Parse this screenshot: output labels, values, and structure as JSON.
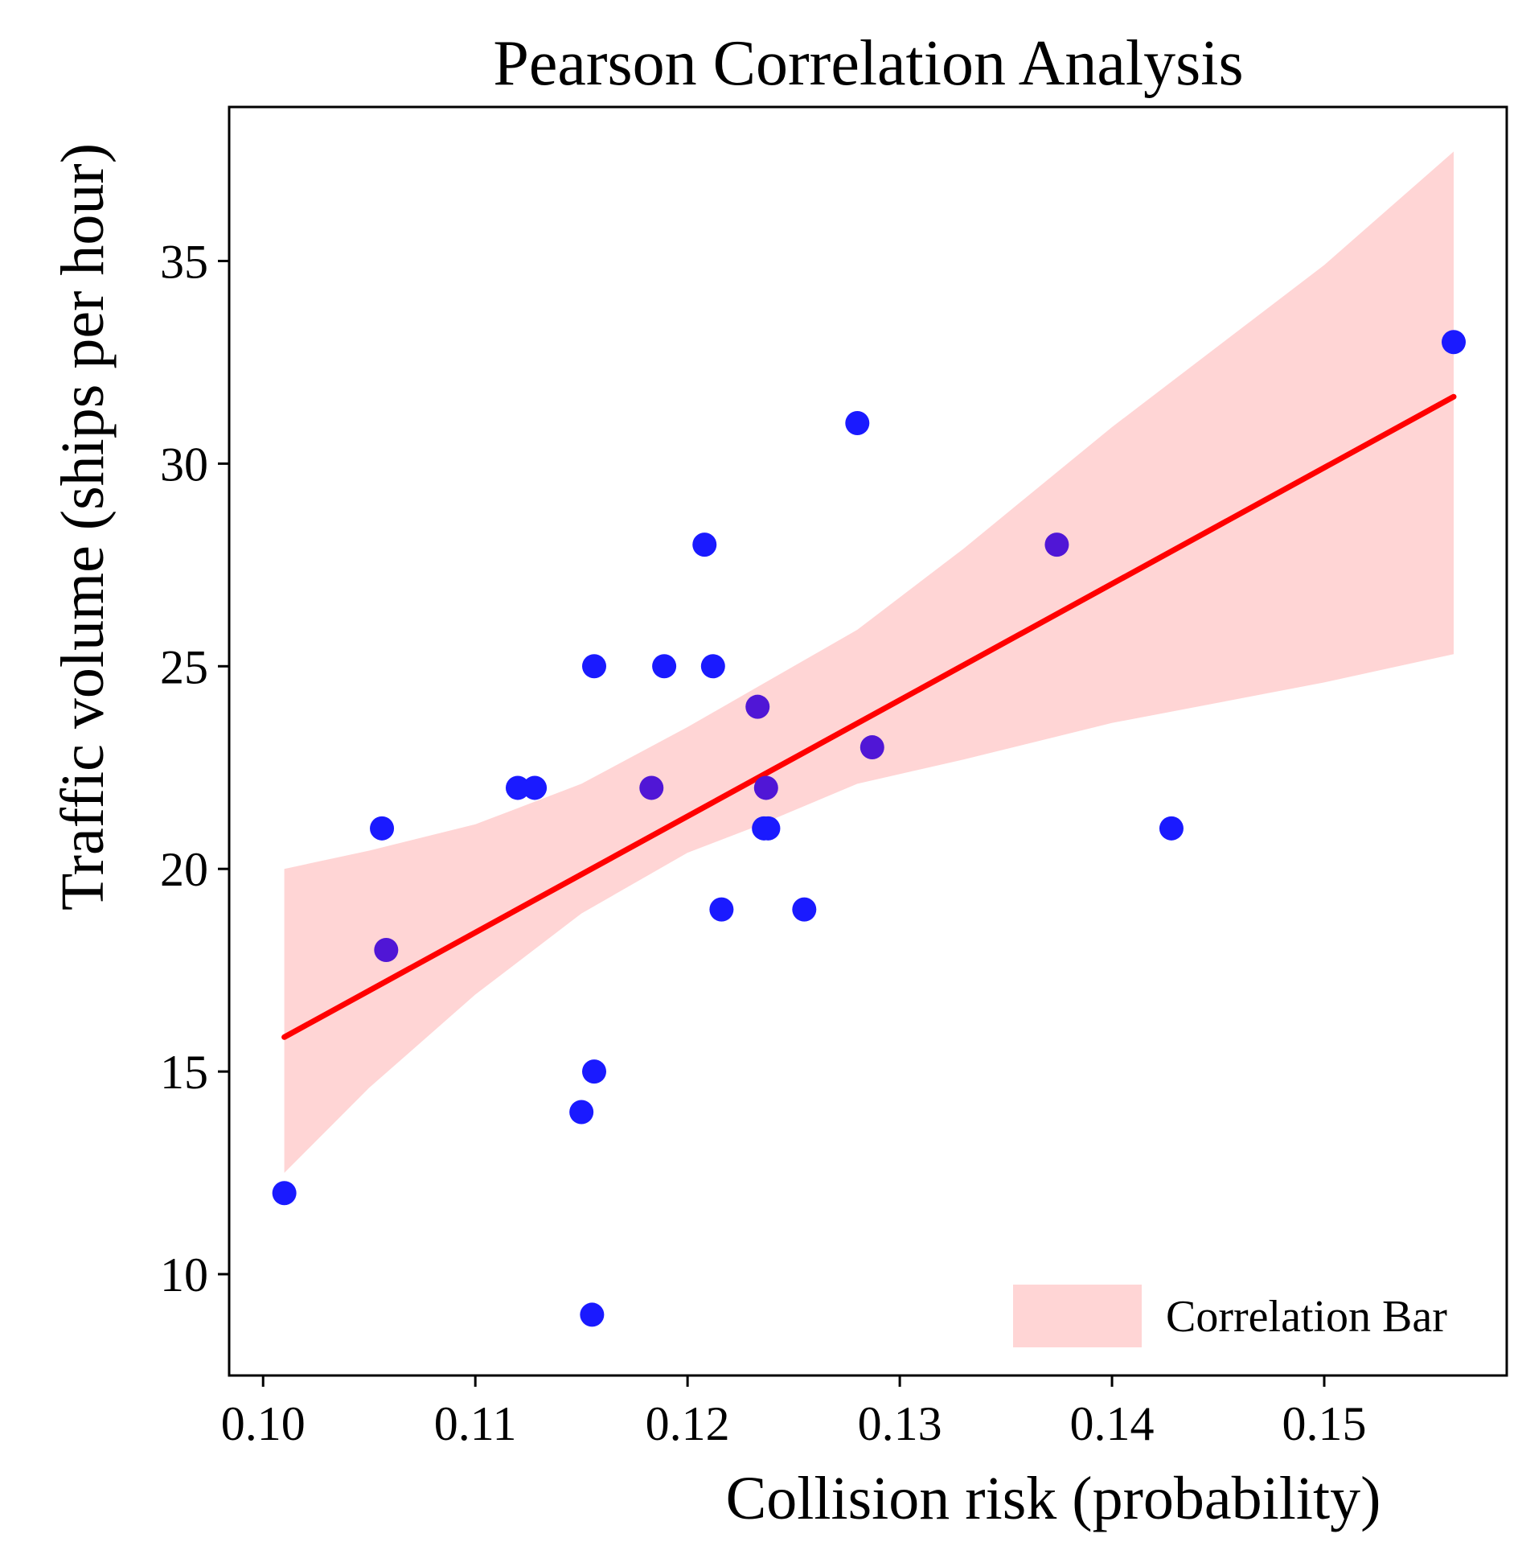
{
  "chart_data": {
    "type": "scatter",
    "title": "Pearson Correlation Analysis",
    "xlabel": "Collision risk (probability)",
    "ylabel": "Traffic volume (ships per hour)",
    "xlim": [
      0.0984,
      0.1586
    ],
    "ylim": [
      7.5,
      38.8
    ],
    "xticks": [
      "0.10",
      "0.11",
      "0.12",
      "0.13",
      "0.14",
      "0.15"
    ],
    "yticks": [
      "10",
      "15",
      "20",
      "25",
      "30",
      "35"
    ],
    "grid": false,
    "legend": {
      "position": "bottom-right",
      "entries": [
        "Correlation Bar"
      ]
    },
    "colors": {
      "points": "#1a1aff",
      "points_alt": "#5016d6",
      "line": "#ff0000",
      "band": "#ffd5d5"
    },
    "points": [
      {
        "x": 0.101,
        "y": 12,
        "alt": false
      },
      {
        "x": 0.1056,
        "y": 21,
        "alt": false
      },
      {
        "x": 0.1058,
        "y": 18,
        "alt": true
      },
      {
        "x": 0.112,
        "y": 22,
        "alt": false
      },
      {
        "x": 0.1128,
        "y": 22,
        "alt": false
      },
      {
        "x": 0.115,
        "y": 14,
        "alt": false
      },
      {
        "x": 0.1155,
        "y": 9,
        "alt": false
      },
      {
        "x": 0.1156,
        "y": 15,
        "alt": false
      },
      {
        "x": 0.1156,
        "y": 25,
        "alt": false
      },
      {
        "x": 0.1183,
        "y": 22,
        "alt": true
      },
      {
        "x": 0.1189,
        "y": 25,
        "alt": false
      },
      {
        "x": 0.1208,
        "y": 28,
        "alt": false
      },
      {
        "x": 0.1212,
        "y": 25,
        "alt": false
      },
      {
        "x": 0.1216,
        "y": 19,
        "alt": false
      },
      {
        "x": 0.1233,
        "y": 24,
        "alt": true
      },
      {
        "x": 0.1236,
        "y": 21,
        "alt": false
      },
      {
        "x": 0.1237,
        "y": 22,
        "alt": true
      },
      {
        "x": 0.1238,
        "y": 21,
        "alt": false
      },
      {
        "x": 0.1255,
        "y": 19,
        "alt": false
      },
      {
        "x": 0.128,
        "y": 31,
        "alt": false
      },
      {
        "x": 0.1287,
        "y": 23,
        "alt": true
      },
      {
        "x": 0.1374,
        "y": 28,
        "alt": true
      },
      {
        "x": 0.1428,
        "y": 21,
        "alt": false
      },
      {
        "x": 0.1561,
        "y": 33,
        "alt": false
      }
    ],
    "regression": {
      "x": [
        0.101,
        0.1561
      ],
      "y": [
        15.85,
        31.65
      ]
    },
    "band": {
      "x": [
        0.101,
        0.105,
        0.11,
        0.115,
        0.12,
        0.123,
        0.128,
        0.133,
        0.14,
        0.145,
        0.15,
        0.1561
      ],
      "upper": [
        20.0,
        20.45,
        21.1,
        22.1,
        23.5,
        24.4,
        25.9,
        27.9,
        30.9,
        32.9,
        34.9,
        37.7
      ],
      "lower": [
        12.5,
        14.6,
        16.9,
        18.9,
        20.4,
        21.0,
        22.1,
        22.7,
        23.6,
        24.1,
        24.6,
        25.3
      ]
    }
  }
}
